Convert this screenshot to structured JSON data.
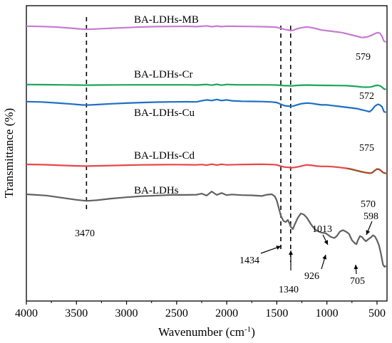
{
  "chart_data": {
    "type": "line",
    "xlabel": "Wavenumber (cm",
    "xlabel_sup": "-1",
    "xlabel_close": ")",
    "ylabel": "Transmittance (%)",
    "xlim": [
      4000,
      400
    ],
    "x_reversed": true,
    "x_ticks": [
      4000,
      3500,
      3000,
      2500,
      2000,
      1500,
      1000,
      500
    ],
    "y_ticks_shown": false,
    "grid": false,
    "vertical_dashed_markers": [
      3400,
      1460,
      1362
    ],
    "series": [
      {
        "name": "BA-LDHs-MB",
        "color": "#c77bd3",
        "points": [
          [
            4000,
            -0.1
          ],
          [
            3850,
            0.1
          ],
          [
            3700,
            0.6
          ],
          [
            3550,
            1.5
          ],
          [
            3450,
            2.2
          ],
          [
            3400,
            2.4
          ],
          [
            3300,
            2.1
          ],
          [
            3150,
            1.5
          ],
          [
            3000,
            1.0
          ],
          [
            2850,
            0.5
          ],
          [
            2700,
            0.2
          ],
          [
            2550,
            0.1
          ],
          [
            2400,
            0.0
          ],
          [
            2300,
            0.2
          ],
          [
            2200,
            -0.4
          ],
          [
            2150,
            0.3
          ],
          [
            2100,
            -0.2
          ],
          [
            2050,
            0.2
          ],
          [
            2000,
            -0.1
          ],
          [
            1900,
            0.0
          ],
          [
            1750,
            0.1
          ],
          [
            1650,
            0.3
          ],
          [
            1550,
            0.5
          ],
          [
            1500,
            0.8
          ],
          [
            1460,
            1.6
          ],
          [
            1420,
            2.5
          ],
          [
            1380,
            3.0
          ],
          [
            1362,
            3.5
          ],
          [
            1330,
            3.0
          ],
          [
            1300,
            2.0
          ],
          [
            1250,
            1.0
          ],
          [
            1200,
            0.5
          ],
          [
            1150,
            1.0
          ],
          [
            1100,
            2.0
          ],
          [
            1050,
            3.0
          ],
          [
            1000,
            3.5
          ],
          [
            950,
            4.0
          ],
          [
            900,
            4.5
          ],
          [
            850,
            5.0
          ],
          [
            800,
            6.0
          ],
          [
            700,
            8.0
          ],
          [
            650,
            9.0
          ],
          [
            600,
            8.5
          ],
          [
            579,
            8.0
          ],
          [
            550,
            7.0
          ],
          [
            510,
            5.5
          ],
          [
            490,
            5.0
          ],
          [
            470,
            5.6
          ],
          [
            450,
            8.0
          ],
          [
            430,
            12.0
          ],
          [
            410,
            12.5
          ]
        ]
      },
      {
        "name": "BA-LDHs-Cr",
        "color": "#1aa65a",
        "points": [
          [
            4000,
            -0.1
          ],
          [
            3800,
            0.0
          ],
          [
            3600,
            0.2
          ],
          [
            3500,
            0.3
          ],
          [
            3400,
            0.4
          ],
          [
            3300,
            0.3
          ],
          [
            3100,
            0.2
          ],
          [
            2900,
            0.1
          ],
          [
            2700,
            0.1
          ],
          [
            2400,
            0.1
          ],
          [
            2300,
            0.3
          ],
          [
            2200,
            -0.2
          ],
          [
            2150,
            0.4
          ],
          [
            2100,
            -0.3
          ],
          [
            2050,
            0.4
          ],
          [
            2000,
            -0.2
          ],
          [
            1900,
            0.1
          ],
          [
            1700,
            0.1
          ],
          [
            1550,
            0.2
          ],
          [
            1500,
            0.3
          ],
          [
            1460,
            0.6
          ],
          [
            1420,
            0.8
          ],
          [
            1380,
            0.8
          ],
          [
            1362,
            1.0
          ],
          [
            1300,
            0.6
          ],
          [
            1200,
            0.3
          ],
          [
            1100,
            0.5
          ],
          [
            1000,
            0.6
          ],
          [
            900,
            0.7
          ],
          [
            800,
            0.8
          ],
          [
            700,
            1.4
          ],
          [
            650,
            1.9
          ],
          [
            600,
            2.0
          ],
          [
            572,
            1.9
          ],
          [
            550,
            1.6
          ],
          [
            520,
            0.8
          ],
          [
            490,
            0.5
          ],
          [
            470,
            0.9
          ],
          [
            450,
            2.0
          ],
          [
            430,
            3.5
          ],
          [
            410,
            3.8
          ]
        ]
      },
      {
        "name": "BA-LDHs-Cu",
        "color": "#1e6fc4",
        "points": [
          [
            4000,
            -0.1
          ],
          [
            3850,
            0.2
          ],
          [
            3700,
            0.9
          ],
          [
            3550,
            1.8
          ],
          [
            3450,
            2.5
          ],
          [
            3400,
            2.7
          ],
          [
            3300,
            2.3
          ],
          [
            3150,
            1.6
          ],
          [
            3000,
            1.1
          ],
          [
            2850,
            0.6
          ],
          [
            2700,
            0.3
          ],
          [
            2550,
            0.1
          ],
          [
            2400,
            0.0
          ],
          [
            2300,
            0.1
          ],
          [
            2250,
            -0.8
          ],
          [
            2200,
            -1.5
          ],
          [
            2150,
            -1.0
          ],
          [
            2100,
            -1.8
          ],
          [
            2050,
            -1.0
          ],
          [
            2000,
            -1.5
          ],
          [
            1950,
            -0.8
          ],
          [
            1850,
            -0.4
          ],
          [
            1750,
            -0.3
          ],
          [
            1650,
            -0.2
          ],
          [
            1550,
            0.2
          ],
          [
            1500,
            0.6
          ],
          [
            1460,
            2.0
          ],
          [
            1420,
            3.2
          ],
          [
            1380,
            3.5
          ],
          [
            1362,
            3.8
          ],
          [
            1330,
            3.3
          ],
          [
            1300,
            2.5
          ],
          [
            1250,
            1.5
          ],
          [
            1200,
            1.0
          ],
          [
            1150,
            1.3
          ],
          [
            1100,
            2.0
          ],
          [
            1050,
            2.5
          ],
          [
            1000,
            2.5
          ],
          [
            950,
            3.0
          ],
          [
            900,
            3.5
          ],
          [
            850,
            4.0
          ],
          [
            800,
            4.5
          ],
          [
            700,
            5.5
          ],
          [
            650,
            6.5
          ],
          [
            600,
            7.5
          ],
          [
            575,
            8.0
          ],
          [
            550,
            6.5
          ],
          [
            520,
            3.5
          ],
          [
            490,
            2.0
          ],
          [
            470,
            2.6
          ],
          [
            450,
            4.0
          ],
          [
            430,
            8.0
          ],
          [
            410,
            8.5
          ]
        ]
      },
      {
        "name": "BA-LDHs-Cd",
        "color": "#e8454b",
        "color_secondary": "#a0522d",
        "points": [
          [
            4000,
            0.0
          ],
          [
            3800,
            0.3
          ],
          [
            3650,
            0.8
          ],
          [
            3500,
            1.2
          ],
          [
            3400,
            1.4
          ],
          [
            3300,
            1.2
          ],
          [
            3150,
            0.9
          ],
          [
            3000,
            0.6
          ],
          [
            2850,
            0.4
          ],
          [
            2700,
            0.3
          ],
          [
            2550,
            0.2
          ],
          [
            2400,
            0.3
          ],
          [
            2300,
            0.4
          ],
          [
            2250,
            0.1
          ],
          [
            2200,
            0.6
          ],
          [
            2150,
            -0.2
          ],
          [
            2100,
            0.5
          ],
          [
            2050,
            -0.1
          ],
          [
            2000,
            0.4
          ],
          [
            1900,
            0.2
          ],
          [
            1750,
            0.0
          ],
          [
            1650,
            -0.1
          ],
          [
            1550,
            0.1
          ],
          [
            1500,
            0.4
          ],
          [
            1460,
            1.5
          ],
          [
            1420,
            2.2
          ],
          [
            1380,
            2.4
          ],
          [
            1362,
            2.8
          ],
          [
            1320,
            2.4
          ],
          [
            1280,
            1.8
          ],
          [
            1230,
            0.9
          ],
          [
            1200,
            0.4
          ],
          [
            1150,
            0.8
          ],
          [
            1100,
            1.4
          ],
          [
            1050,
            1.6
          ],
          [
            1000,
            1.6
          ],
          [
            950,
            1.8
          ],
          [
            900,
            2.2
          ],
          [
            850,
            2.7
          ],
          [
            800,
            3.2
          ],
          [
            750,
            4.0
          ],
          [
            700,
            5.0
          ],
          [
            650,
            6.0
          ],
          [
            600,
            6.8
          ],
          [
            570,
            7.1
          ],
          [
            550,
            6.8
          ],
          [
            520,
            4.8
          ],
          [
            500,
            3.7
          ],
          [
            480,
            3.9
          ],
          [
            460,
            5.0
          ],
          [
            440,
            6.5
          ],
          [
            420,
            7.0
          ],
          [
            410,
            7.5
          ]
        ]
      },
      {
        "name": "BA-LDHs",
        "color": "#616161",
        "points": [
          [
            4000,
            0.0
          ],
          [
            3800,
            0.6
          ],
          [
            3650,
            1.6
          ],
          [
            3500,
            2.6
          ],
          [
            3400,
            3.1
          ],
          [
            3300,
            2.8
          ],
          [
            3150,
            2.0
          ],
          [
            3000,
            1.4
          ],
          [
            2850,
            0.9
          ],
          [
            2700,
            0.6
          ],
          [
            2550,
            0.3
          ],
          [
            2400,
            0.3
          ],
          [
            2300,
            0.2
          ],
          [
            2250,
            -0.3
          ],
          [
            2200,
            0.6
          ],
          [
            2150,
            -1.3
          ],
          [
            2100,
            0.3
          ],
          [
            2050,
            -0.6
          ],
          [
            2000,
            0.4
          ],
          [
            1950,
            0.1
          ],
          [
            1850,
            0.4
          ],
          [
            1750,
            0.5
          ],
          [
            1650,
            0.8
          ],
          [
            1600,
            0.2
          ],
          [
            1550,
            0.0
          ],
          [
            1520,
            1.0
          ],
          [
            1500,
            3.0
          ],
          [
            1480,
            6.5
          ],
          [
            1460,
            10.0
          ],
          [
            1434,
            12.5
          ],
          [
            1410,
            13.0
          ],
          [
            1390,
            12.0
          ],
          [
            1370,
            14.0
          ],
          [
            1362,
            15.2
          ],
          [
            1345,
            16.0
          ],
          [
            1340,
            16.3
          ],
          [
            1320,
            14.0
          ],
          [
            1290,
            11.0
          ],
          [
            1260,
            9.0
          ],
          [
            1230,
            9.5
          ],
          [
            1200,
            11.0
          ],
          [
            1160,
            14.0
          ],
          [
            1120,
            16.5
          ],
          [
            1080,
            17.5
          ],
          [
            1050,
            18.0
          ],
          [
            1013,
            18.2
          ],
          [
            990,
            19.0
          ],
          [
            960,
            20.0
          ],
          [
            926,
            20.5
          ],
          [
            900,
            19.5
          ],
          [
            870,
            17.5
          ],
          [
            840,
            16.8
          ],
          [
            810,
            17.5
          ],
          [
            780,
            18.5
          ],
          [
            750,
            21.5
          ],
          [
            720,
            23.0
          ],
          [
            705,
            23.4
          ],
          [
            690,
            21.5
          ],
          [
            670,
            19.6
          ],
          [
            650,
            20.0
          ],
          [
            630,
            21.2
          ],
          [
            610,
            22.0
          ],
          [
            598,
            21.5
          ],
          [
            580,
            20.8
          ],
          [
            560,
            20.2
          ],
          [
            540,
            19.2
          ],
          [
            520,
            19.8
          ],
          [
            500,
            21.5
          ],
          [
            480,
            24.0
          ],
          [
            460,
            28.0
          ],
          [
            440,
            33.0
          ],
          [
            425,
            34.0
          ],
          [
            410,
            33.5
          ]
        ]
      }
    ],
    "annotations": [
      {
        "text": "579"
      },
      {
        "text": "572"
      },
      {
        "text": "575"
      },
      {
        "text": "570"
      },
      {
        "text": "3470"
      },
      {
        "text": "1434"
      },
      {
        "text": "1340"
      },
      {
        "text": "926"
      },
      {
        "text": "1013"
      },
      {
        "text": "705"
      },
      {
        "text": "598"
      }
    ]
  }
}
